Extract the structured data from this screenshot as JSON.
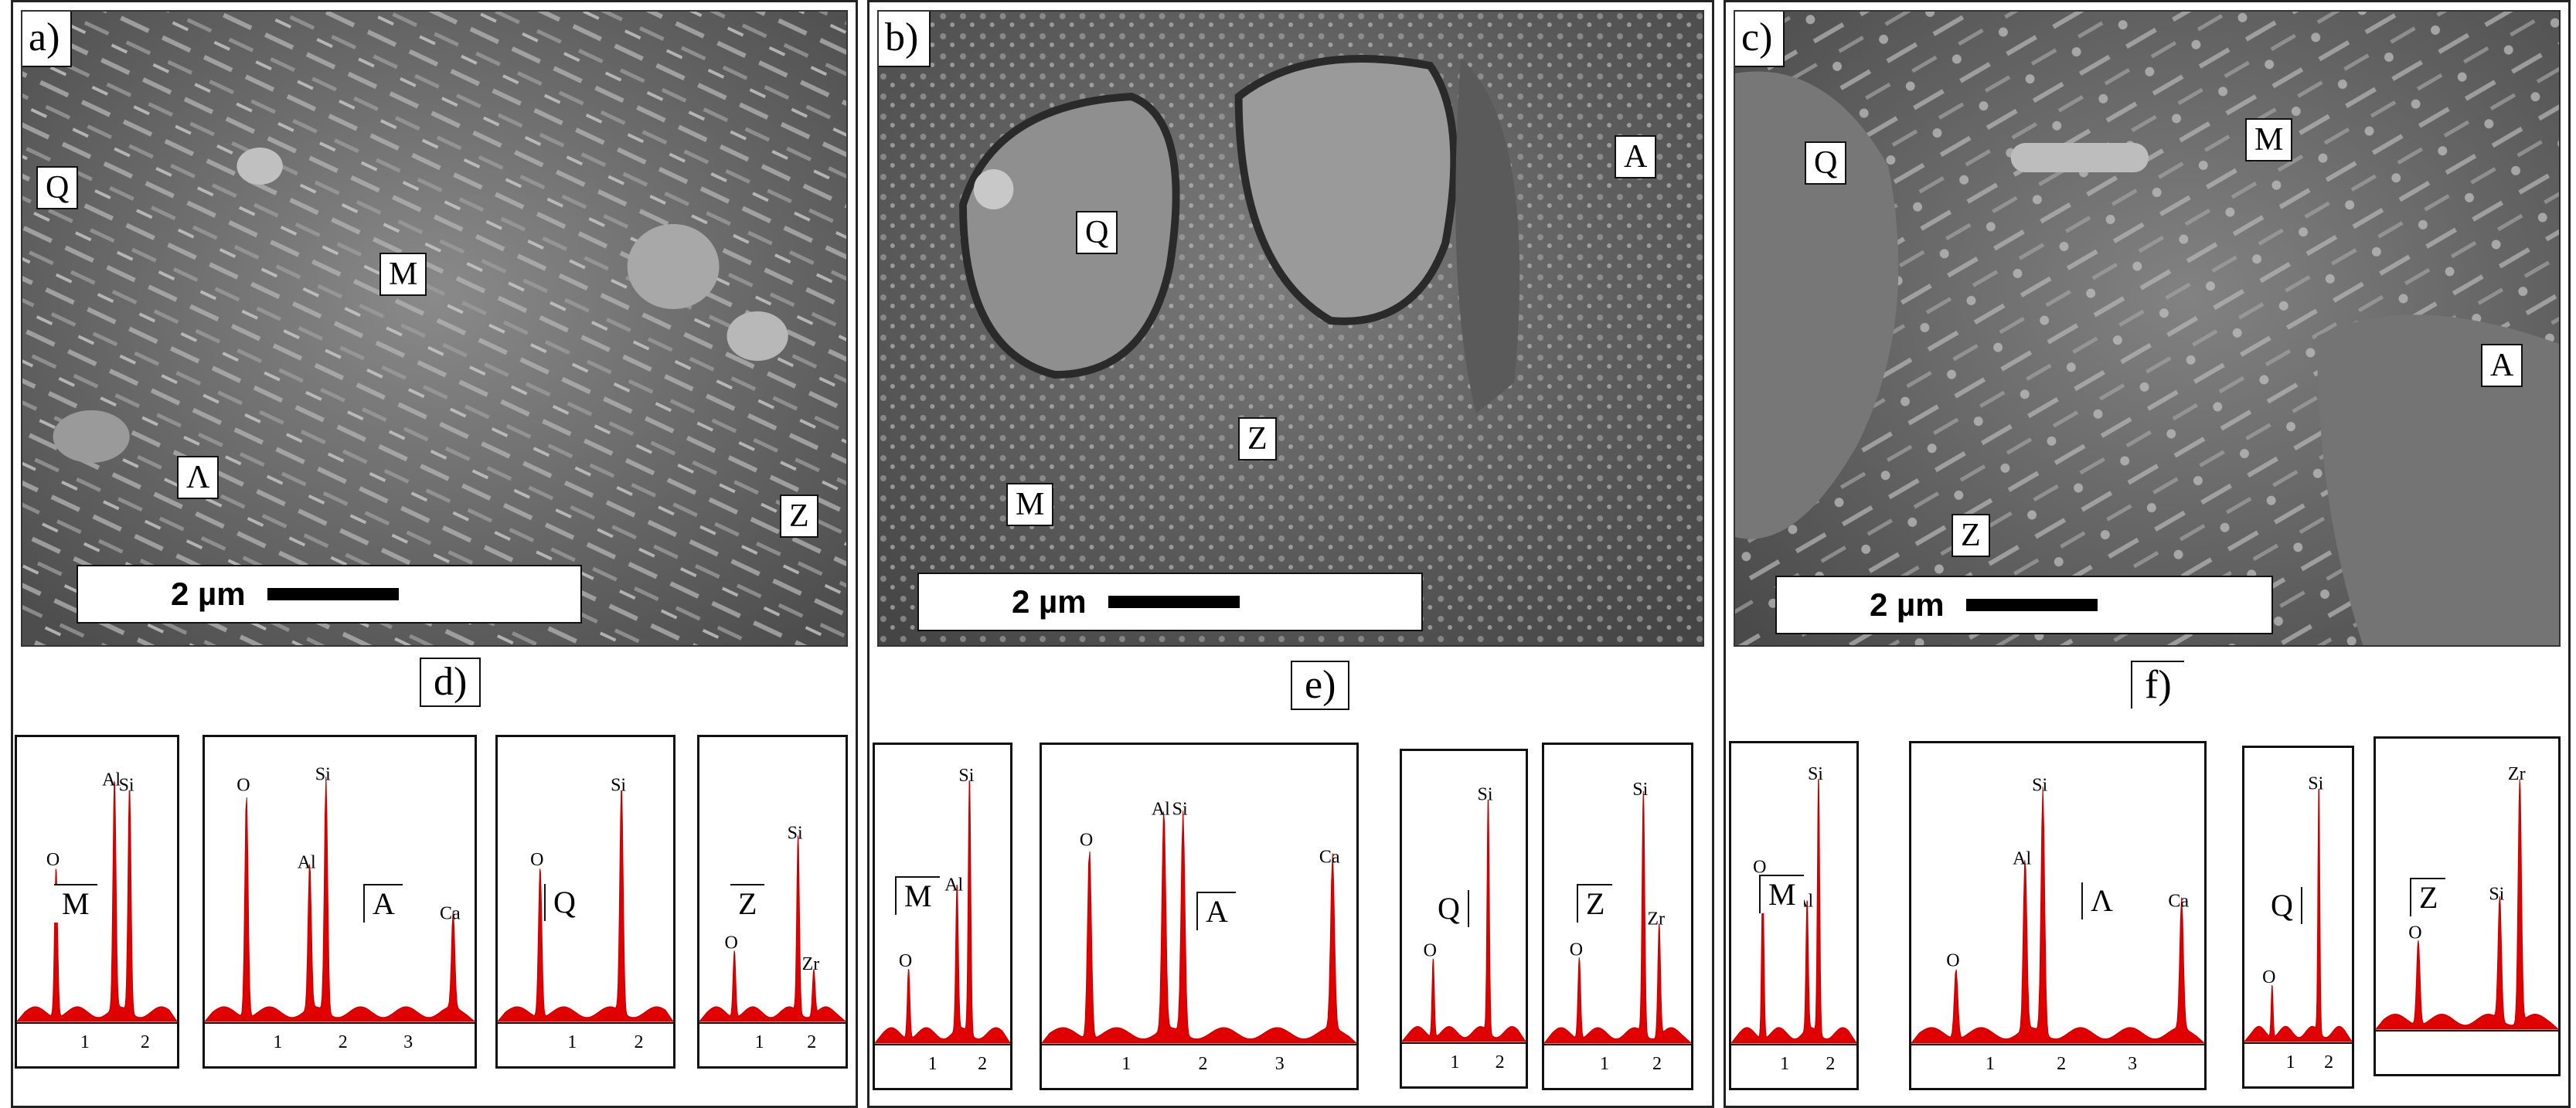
{
  "figure": {
    "panels": [
      {
        "letter": "a)",
        "scale_label": "2 µm",
        "phase_labels": [
          "Q",
          "M",
          "Λ",
          "Z"
        ],
        "eds_letter": "d)",
        "spectra": [
          {
            "phase": "M",
            "ticks": [
              "1",
              "2"
            ],
            "peaks": [
              {
                "el": "O",
                "pos": 0.52,
                "h": 0.56
              },
              {
                "el": "Al",
                "pos": 1.49,
                "h": 0.86
              },
              {
                "el": "Si",
                "pos": 1.74,
                "h": 0.84
              }
            ]
          },
          {
            "phase": "A",
            "ticks": [
              "1",
              "2",
              "3"
            ],
            "peaks": [
              {
                "el": "O",
                "pos": 0.52,
                "h": 0.84
              },
              {
                "el": "Al",
                "pos": 1.49,
                "h": 0.55
              },
              {
                "el": "Si",
                "pos": 1.74,
                "h": 0.88
              },
              {
                "el": "Ca",
                "pos": 3.69,
                "h": 0.36
              }
            ]
          },
          {
            "phase": "Q",
            "ticks": [
              "1",
              "2"
            ],
            "peaks": [
              {
                "el": "O",
                "pos": 0.52,
                "h": 0.56
              },
              {
                "el": "Si",
                "pos": 1.74,
                "h": 0.84
              }
            ]
          },
          {
            "phase": "Z",
            "ticks": [
              "1",
              "2"
            ],
            "peaks": [
              {
                "el": "O",
                "pos": 0.52,
                "h": 0.25
              },
              {
                "el": "Si",
                "pos": 1.74,
                "h": 0.66
              },
              {
                "el": "Zr",
                "pos": 2.04,
                "h": 0.17
              }
            ]
          }
        ]
      },
      {
        "letter": "b)",
        "scale_label": "2 µm",
        "phase_labels": [
          "Q",
          "A",
          "Z",
          "M"
        ],
        "eds_letter": "e)",
        "spectra": [
          {
            "phase": "M",
            "ticks": [
              "1",
              "2"
            ],
            "peaks": [
              {
                "el": "O",
                "pos": 0.52,
                "h": 0.25
              },
              {
                "el": "Al",
                "pos": 1.49,
                "h": 0.52
              },
              {
                "el": "Si",
                "pos": 1.74,
                "h": 0.91
              }
            ]
          },
          {
            "phase": "A",
            "ticks": [
              "1",
              "2",
              "3"
            ],
            "peaks": [
              {
                "el": "O",
                "pos": 0.52,
                "h": 0.68
              },
              {
                "el": "Al",
                "pos": 1.49,
                "h": 0.79
              },
              {
                "el": "Si",
                "pos": 1.74,
                "h": 0.79
              },
              {
                "el": "Ca",
                "pos": 3.69,
                "h": 0.62
              }
            ]
          },
          {
            "phase": "Q",
            "ticks": [
              "1",
              "2"
            ],
            "peaks": [
              {
                "el": "O",
                "pos": 0.52,
                "h": 0.29
              },
              {
                "el": "Si",
                "pos": 1.74,
                "h": 0.86
              }
            ]
          },
          {
            "phase": "Z",
            "ticks": [
              "1",
              "2"
            ],
            "peaks": [
              {
                "el": "O",
                "pos": 0.52,
                "h": 0.29
              },
              {
                "el": "Si",
                "pos": 1.74,
                "h": 0.86
              },
              {
                "el": "Zr",
                "pos": 2.04,
                "h": 0.4
              }
            ]
          }
        ]
      },
      {
        "letter": "c)",
        "scale_label": "2 µm",
        "phase_labels": [
          "Q",
          "M",
          "A",
          "Z"
        ],
        "eds_letter": "f)",
        "spectra": [
          {
            "phase": "M",
            "ticks": [
              "1",
              "2"
            ],
            "peaks": [
              {
                "el": "O",
                "pos": 0.52,
                "h": 0.58
              },
              {
                "el": "Al",
                "pos": 1.49,
                "h": 0.46
              },
              {
                "el": "Si",
                "pos": 1.74,
                "h": 0.91
              }
            ]
          },
          {
            "phase": "Λ",
            "ticks": [
              "1",
              "2",
              "3"
            ],
            "peaks": [
              {
                "el": "O",
                "pos": 0.52,
                "h": 0.25
              },
              {
                "el": "Al",
                "pos": 1.49,
                "h": 0.61
              },
              {
                "el": "Si",
                "pos": 1.74,
                "h": 0.87
              },
              {
                "el": "Ca",
                "pos": 3.69,
                "h": 0.46
              }
            ]
          },
          {
            "phase": "Q",
            "ticks": [
              "1",
              "2"
            ],
            "peaks": [
              {
                "el": "O",
                "pos": 0.52,
                "h": 0.19
              },
              {
                "el": "Si",
                "pos": 1.74,
                "h": 0.89
              }
            ]
          },
          {
            "phase": "Z",
            "ticks": [],
            "peaks": [
              {
                "el": "O",
                "pos": 0.52,
                "h": 0.31
              },
              {
                "el": "Si",
                "pos": 1.74,
                "h": 0.45
              },
              {
                "el": "Zr",
                "pos": 2.04,
                "h": 0.89
              }
            ]
          }
        ]
      }
    ]
  }
}
